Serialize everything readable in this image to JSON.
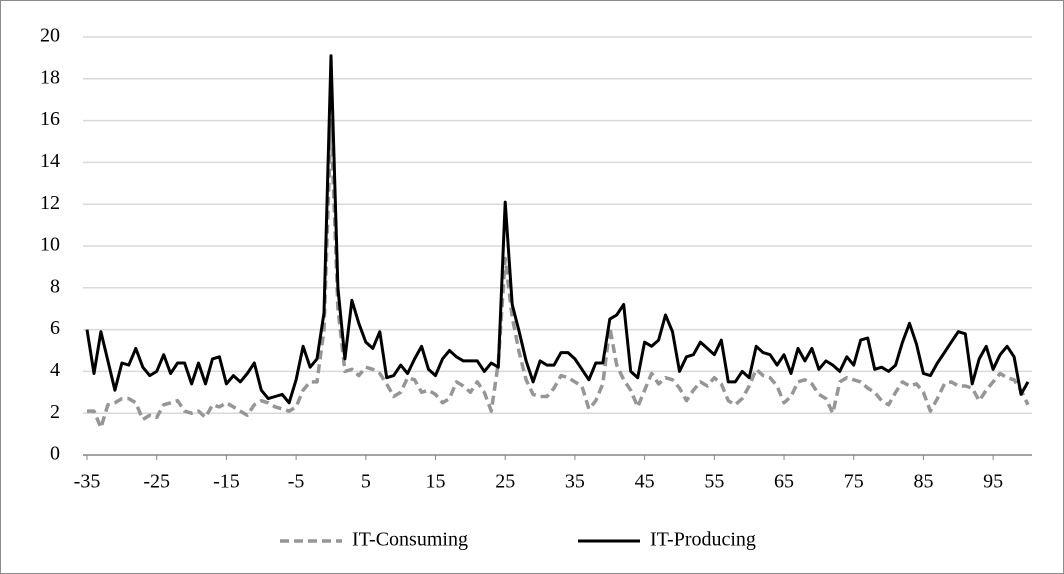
{
  "chart_data": {
    "type": "line",
    "x": [
      -35,
      -34,
      -33,
      -32,
      -31,
      -30,
      -29,
      -28,
      -27,
      -26,
      -25,
      -24,
      -23,
      -22,
      -21,
      -20,
      -19,
      -18,
      -17,
      -16,
      -15,
      -14,
      -13,
      -12,
      -11,
      -10,
      -9,
      -8,
      -7,
      -6,
      -5,
      -4,
      -3,
      -2,
      -1,
      0,
      1,
      2,
      3,
      4,
      5,
      6,
      7,
      8,
      9,
      10,
      11,
      12,
      13,
      14,
      15,
      16,
      17,
      18,
      19,
      20,
      21,
      22,
      23,
      24,
      25,
      26,
      27,
      28,
      29,
      30,
      31,
      32,
      33,
      34,
      35,
      36,
      37,
      38,
      39,
      40,
      41,
      42,
      43,
      44,
      45,
      46,
      47,
      48,
      49,
      50,
      51,
      52,
      53,
      54,
      55,
      56,
      57,
      58,
      59,
      60,
      61,
      62,
      63,
      64,
      65,
      66,
      67,
      68,
      69,
      70,
      71,
      72,
      73,
      74,
      75,
      76,
      77,
      78,
      79,
      80,
      81,
      82,
      83,
      84,
      85,
      86,
      87,
      88,
      89,
      90,
      91,
      92,
      93,
      94,
      95,
      96,
      97,
      98,
      99,
      100
    ],
    "series": [
      {
        "name": "IT-Consuming",
        "color": "#969696",
        "dash": true,
        "values": [
          2.1,
          2.1,
          1.3,
          2.4,
          2.5,
          2.7,
          2.7,
          2.5,
          1.7,
          1.9,
          1.8,
          2.4,
          2.5,
          2.6,
          2.1,
          2,
          2.1,
          1.8,
          2.4,
          2.3,
          2.5,
          2.3,
          2.1,
          1.9,
          2.4,
          2.6,
          2.5,
          2.3,
          2.2,
          2.1,
          2.3,
          3.1,
          3.5,
          3.5,
          6,
          16,
          7,
          4,
          4.1,
          3.8,
          4.2,
          4.1,
          3.9,
          3.4,
          2.8,
          3,
          3.7,
          3.6,
          3,
          3.1,
          2.9,
          2.5,
          2.7,
          3.5,
          3.3,
          3,
          3.5,
          3,
          2.1,
          4.4,
          9.4,
          6.6,
          4.9,
          3.6,
          2.9,
          2.8,
          2.8,
          3.2,
          3.8,
          3.7,
          3.5,
          3.3,
          2.2,
          2.6,
          3.4,
          6.1,
          4.3,
          3.6,
          3.1,
          2.3,
          3.1,
          3.9,
          3.4,
          3.7,
          3.6,
          3.2,
          2.6,
          3.1,
          3.5,
          3.3,
          3.7,
          3.4,
          2.6,
          2.4,
          2.7,
          3.3,
          4.1,
          3.8,
          3.7,
          3.3,
          2.5,
          2.8,
          3.5,
          3.6,
          3.4,
          2.9,
          2.7,
          2,
          3.5,
          3.7,
          3.6,
          3.5,
          3.2,
          3,
          2.6,
          2.4,
          3,
          3.5,
          3.3,
          3.4,
          3,
          2.1,
          2.7,
          3.4,
          3.5,
          3.3,
          3.3,
          3.2,
          2.6,
          3.1,
          3.5,
          3.9,
          3.7,
          3.6,
          3.1,
          2.4
        ]
      },
      {
        "name": "IT-Producing",
        "color": "#000000",
        "dash": false,
        "values": [
          6,
          3.9,
          5.9,
          4.5,
          3.1,
          4.4,
          4.3,
          5.1,
          4.2,
          3.8,
          4,
          4.8,
          3.9,
          4.4,
          4.4,
          3.4,
          4.4,
          3.4,
          4.6,
          4.7,
          3.4,
          3.8,
          3.5,
          3.9,
          4.4,
          3.1,
          2.7,
          2.8,
          2.9,
          2.5,
          3.6,
          5.2,
          4.2,
          4.6,
          6.8,
          19.1,
          8,
          4.6,
          7.4,
          6.3,
          5.4,
          5.1,
          5.9,
          3.7,
          3.8,
          4.3,
          3.9,
          4.6,
          5.2,
          4.1,
          3.8,
          4.6,
          5,
          4.7,
          4.5,
          4.5,
          4.5,
          4,
          4.4,
          4.2,
          12.1,
          7.2,
          5.9,
          4.5,
          3.5,
          4.5,
          4.3,
          4.3,
          4.9,
          4.9,
          4.6,
          4.1,
          3.6,
          4.4,
          4.4,
          6.5,
          6.7,
          7.2,
          4,
          3.7,
          5.4,
          5.2,
          5.5,
          6.7,
          5.9,
          4,
          4.7,
          4.8,
          5.4,
          5.1,
          4.8,
          5.5,
          3.5,
          3.5,
          4,
          3.7,
          5.2,
          4.9,
          4.8,
          4.3,
          4.8,
          3.9,
          5.1,
          4.5,
          5.1,
          4.1,
          4.5,
          4.3,
          4,
          4.7,
          4.3,
          5.5,
          5.6,
          4.1,
          4.2,
          4,
          4.3,
          5.4,
          6.3,
          5.3,
          3.9,
          3.8,
          4.4,
          4.9,
          5.4,
          5.9,
          5.8,
          3.4,
          4.6,
          5.2,
          4.1,
          4.8,
          5.2,
          4.7,
          2.9,
          3.5
        ]
      }
    ],
    "xlim": [
      -35,
      100
    ],
    "xticks": [
      -35,
      -25,
      -15,
      -5,
      5,
      15,
      25,
      35,
      45,
      55,
      65,
      75,
      85,
      95
    ],
    "ylim": [
      0,
      20
    ],
    "yticks": [
      0,
      2,
      4,
      6,
      8,
      10,
      12,
      14,
      16,
      18,
      20
    ],
    "grid": true,
    "legend": "bottom"
  }
}
